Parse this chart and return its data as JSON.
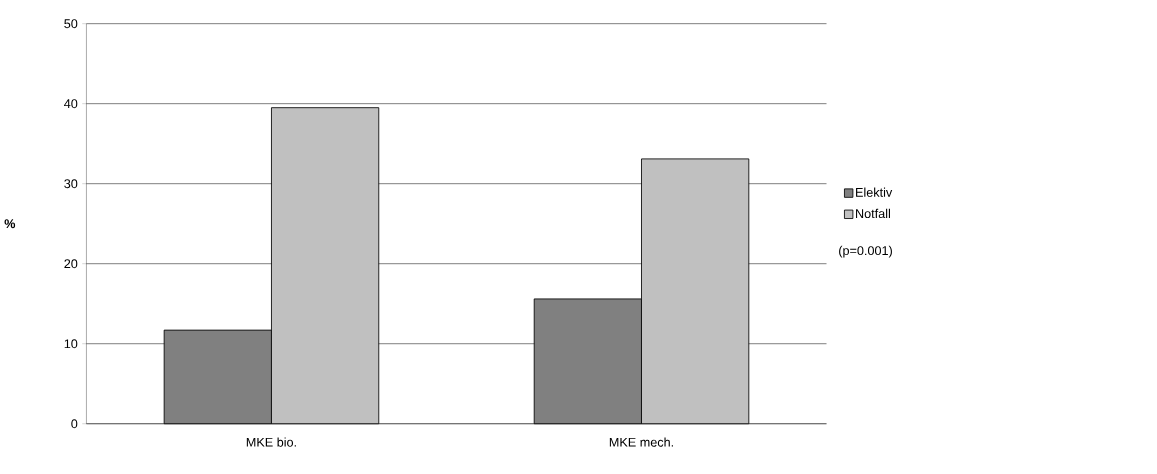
{
  "chart_data": {
    "type": "bar",
    "ylabel": "%",
    "categories": [
      "MKE bio.",
      "MKE mech."
    ],
    "series": [
      {
        "name": "Elektiv",
        "color": "#808080",
        "values": [
          11.7,
          15.6
        ]
      },
      {
        "name": "Notfall",
        "color": "#c0c0c0",
        "values": [
          39.5,
          33.1
        ]
      }
    ],
    "ylim": [
      0,
      50
    ],
    "yticks": [
      0,
      10,
      20,
      30,
      40,
      50
    ],
    "grid": "y",
    "legend": "right",
    "annotations": [
      "(p=0.001)"
    ]
  }
}
